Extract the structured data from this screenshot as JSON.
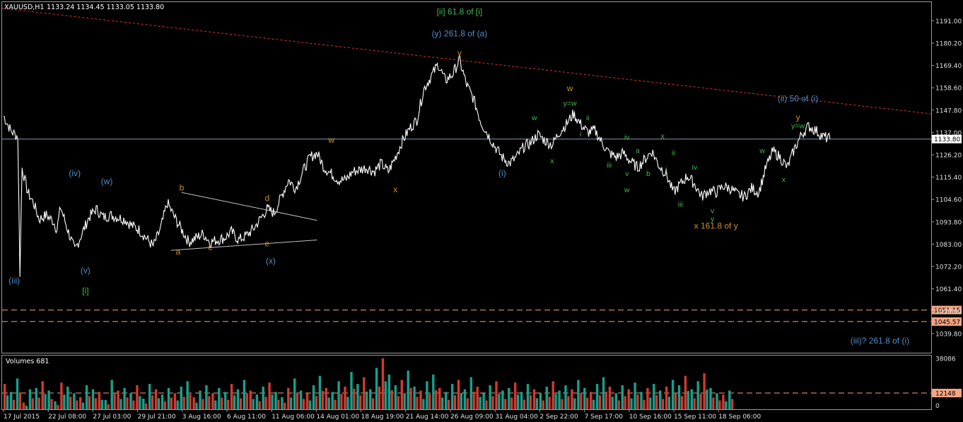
{
  "chart_data": {
    "type": "line",
    "symbol": "XAUUSD,H1",
    "ohlc": "1133.24 1134.45 1133.05 1133.80",
    "current_price": 1133.8,
    "current_price_label": "1133.80",
    "price_levels": [
      {
        "value": 1051.15,
        "label": "1051.15",
        "color": "#f4a582"
      },
      {
        "value": 1045.57,
        "label": "1045.57",
        "color": "#f4a582"
      }
    ],
    "ylim": [
      1030.5,
      1200.0
    ],
    "y_ticks": [
      "1191.00",
      "1180.20",
      "1169.40",
      "1158.60",
      "1147.80",
      "1137.00",
      "1126.20",
      "1115.40",
      "1104.60",
      "1093.80",
      "1083.00",
      "1072.20",
      "1061.40",
      "1050.60",
      "1039.80"
    ],
    "x_ticks": [
      "17 Jul 2015",
      "22 Jul 08:00",
      "27 Jul 03:00",
      "29 Jul 21:00",
      "3 Aug 16:00",
      "6 Aug 11:00",
      "11 Aug 06:00",
      "14 Aug 01:00",
      "18 Aug 19:00",
      "21 Aug 14:00",
      "26 Aug 09:00",
      "31 Aug 04:00",
      "2 Sep 22:00",
      "7 Sep 17:00",
      "10 Sep 16:00",
      "15 Sep 11:00",
      "18 Sep 06:00"
    ],
    "price_path": [
      [
        0,
        1145
      ],
      [
        1,
        1138
      ],
      [
        1.3,
        1137
      ],
      [
        2,
        1135
      ],
      [
        2.3,
        1069
      ],
      [
        2.6,
        1120
      ],
      [
        3.4,
        1108
      ],
      [
        4.2,
        1103
      ],
      [
        5,
        1095
      ],
      [
        6,
        1097
      ],
      [
        7,
        1094
      ],
      [
        7.5,
        1090
      ],
      [
        8,
        1101
      ],
      [
        9,
        1090
      ],
      [
        10,
        1080
      ],
      [
        11,
        1088
      ],
      [
        12,
        1096
      ],
      [
        13,
        1100
      ],
      [
        14,
        1096
      ],
      [
        15,
        1097
      ],
      [
        16,
        1096
      ],
      [
        17,
        1095
      ],
      [
        18,
        1092
      ],
      [
        19,
        1090
      ],
      [
        20,
        1086
      ],
      [
        21,
        1082
      ],
      [
        22,
        1090
      ],
      [
        23,
        1103
      ],
      [
        24,
        1096
      ],
      [
        25,
        1090
      ],
      [
        26,
        1084
      ],
      [
        27,
        1086
      ],
      [
        28,
        1088
      ],
      [
        29,
        1084
      ],
      [
        30,
        1085
      ],
      [
        31,
        1086
      ],
      [
        32,
        1089
      ],
      [
        33,
        1085
      ],
      [
        34,
        1087
      ],
      [
        35,
        1090
      ],
      [
        36,
        1095
      ],
      [
        37,
        1100
      ],
      [
        38,
        1098
      ],
      [
        39,
        1106
      ],
      [
        40,
        1114
      ],
      [
        41,
        1110
      ],
      [
        42,
        1118
      ],
      [
        43,
        1125
      ],
      [
        44,
        1127
      ],
      [
        45,
        1120
      ],
      [
        46,
        1117
      ],
      [
        47,
        1114
      ],
      [
        48,
        1114
      ],
      [
        49,
        1118
      ],
      [
        50,
        1119
      ],
      [
        51,
        1120
      ],
      [
        52,
        1118
      ],
      [
        53,
        1122
      ],
      [
        54,
        1118
      ],
      [
        55,
        1125
      ],
      [
        56,
        1133
      ],
      [
        57,
        1139
      ],
      [
        58,
        1143
      ],
      [
        59,
        1158
      ],
      [
        60,
        1164
      ],
      [
        61,
        1170
      ],
      [
        62,
        1162
      ],
      [
        63,
        1165
      ],
      [
        64,
        1172
      ],
      [
        65,
        1160
      ],
      [
        66,
        1153
      ],
      [
        67,
        1142
      ],
      [
        68,
        1136
      ],
      [
        69,
        1130
      ],
      [
        70,
        1125
      ],
      [
        71,
        1122
      ],
      [
        72,
        1125
      ],
      [
        73,
        1130
      ],
      [
        74,
        1132
      ],
      [
        75,
        1136
      ],
      [
        76,
        1133
      ],
      [
        77,
        1131
      ],
      [
        78,
        1137
      ],
      [
        79,
        1141
      ],
      [
        80,
        1146
      ],
      [
        81,
        1141
      ],
      [
        82,
        1137
      ],
      [
        83,
        1138
      ],
      [
        84,
        1132
      ],
      [
        85,
        1127
      ],
      [
        86,
        1125
      ],
      [
        87,
        1127
      ],
      [
        88,
        1123
      ],
      [
        89,
        1120
      ],
      [
        90,
        1124
      ],
      [
        91,
        1128
      ],
      [
        92,
        1121
      ],
      [
        93,
        1117
      ],
      [
        94,
        1108
      ],
      [
        95,
        1112
      ],
      [
        96,
        1116
      ],
      [
        97,
        1112
      ],
      [
        98,
        1106
      ],
      [
        99,
        1109
      ],
      [
        100,
        1108
      ],
      [
        101,
        1111
      ],
      [
        102,
        1110
      ],
      [
        103,
        1107
      ],
      [
        104,
        1106
      ],
      [
        105,
        1110
      ],
      [
        106,
        1108
      ],
      [
        107,
        1120
      ],
      [
        108,
        1128
      ],
      [
        109,
        1125
      ],
      [
        110,
        1120
      ],
      [
        111,
        1129
      ],
      [
        112,
        1136
      ],
      [
        113,
        1140
      ],
      [
        114,
        1138
      ],
      [
        115,
        1135
      ],
      [
        116,
        1133.8
      ]
    ],
    "volume_title": "Volumes 681",
    "volume_ticks": [
      "38086",
      "12148",
      "0"
    ],
    "volume_level": 12148,
    "volume_max": 38086,
    "volumes": [
      19000,
      13000,
      23000,
      5000,
      15000,
      16000,
      21000,
      14000,
      6000,
      20000,
      17000,
      12000,
      9000,
      18000,
      15000,
      13000,
      7000,
      22000,
      14000,
      16000,
      12000,
      18000,
      8000,
      19000,
      15000,
      11000,
      16000,
      12000,
      17000,
      21000,
      9000,
      14000,
      18000,
      12000,
      16000,
      13000,
      19000,
      15000,
      22000,
      14000,
      11000,
      17000,
      20000,
      13000,
      9000,
      16000,
      23000,
      14000,
      12000,
      18000,
      25000,
      16000,
      13000,
      21000,
      17000,
      28000,
      19000,
      24000,
      15000,
      31000,
      38086,
      26000,
      18000,
      22000,
      29000,
      17000,
      14000,
      21000,
      26000,
      16000,
      13000,
      19000,
      22000,
      15000,
      24000,
      17000,
      12000,
      18000,
      21000,
      14000,
      16000,
      20000,
      13000,
      19000,
      15000,
      12000,
      17000,
      21000,
      14000,
      18000,
      15000,
      22000,
      16000,
      13000,
      19000,
      24000,
      17000,
      12000,
      18000,
      15000,
      20000,
      13000,
      16000,
      19000,
      14000,
      17000,
      22000,
      18000,
      25000,
      15000,
      21000,
      27000,
      16000,
      12000,
      11000,
      14000
    ],
    "trendline_color": "#e03030",
    "annotations": [
      {
        "text": "[ii] 61.8 of [i]",
        "color": "#3fb950",
        "idx": 64,
        "price": 1194,
        "size": "l"
      },
      {
        "text": "(y) 261.8 of (a)",
        "color": "#4f8fc9",
        "idx": 64,
        "price": 1183.5,
        "size": "l"
      },
      {
        "text": "y",
        "color": "#c8902a",
        "idx": 64,
        "price": 1174,
        "size": "l"
      },
      {
        "text": "(ii) 50 of (i)",
        "color": "#4f8fc9",
        "idx": 111.5,
        "price": 1152,
        "size": "l"
      },
      {
        "text": "y",
        "color": "#c8902a",
        "idx": 111.5,
        "price": 1143,
        "size": "l"
      },
      {
        "text": "y=w",
        "color": "#3fb950",
        "idx": 111.5,
        "price": 1139,
        "size": "s"
      },
      {
        "text": "(iii)",
        "color": "#4f8fc9",
        "idx": 1.5,
        "price": 1064,
        "size": "l"
      },
      {
        "text": "(iv)",
        "color": "#4f8fc9",
        "idx": 10,
        "price": 1116,
        "size": "l"
      },
      {
        "text": "(w)",
        "color": "#4f8fc9",
        "idx": 14.5,
        "price": 1112,
        "size": "l"
      },
      {
        "text": "(v)",
        "color": "#4f8fc9",
        "idx": 11.5,
        "price": 1069,
        "size": "l"
      },
      {
        "text": "[i]",
        "color": "#3fb950",
        "idx": 11.5,
        "price": 1059,
        "size": "l"
      },
      {
        "text": "b",
        "color": "#c8902a",
        "idx": 25,
        "price": 1109,
        "size": "l"
      },
      {
        "text": "a",
        "color": "#c8902a",
        "idx": 24.5,
        "price": 1078,
        "size": "l"
      },
      {
        "text": "c",
        "color": "#c8902a",
        "idx": 29,
        "price": 1080,
        "size": "l"
      },
      {
        "text": "d",
        "color": "#c8902a",
        "idx": 37,
        "price": 1104,
        "size": "l"
      },
      {
        "text": "e",
        "color": "#c8902a",
        "idx": 37,
        "price": 1082,
        "size": "l"
      },
      {
        "text": "(x)",
        "color": "#4f8fc9",
        "idx": 37.5,
        "price": 1073.5,
        "size": "l"
      },
      {
        "text": "w",
        "color": "#c8902a",
        "idx": 46,
        "price": 1132,
        "size": "l"
      },
      {
        "text": "x",
        "color": "#c8902a",
        "idx": 55,
        "price": 1108,
        "size": "l"
      },
      {
        "text": "(i)",
        "color": "#4f8fc9",
        "idx": 70,
        "price": 1116,
        "size": "l"
      },
      {
        "text": "w",
        "color": "#3fb950",
        "idx": 74.5,
        "price": 1143,
        "size": "s"
      },
      {
        "text": "x",
        "color": "#3fb950",
        "idx": 77,
        "price": 1122,
        "size": "s"
      },
      {
        "text": "w",
        "color": "#c8902a",
        "idx": 79.5,
        "price": 1157,
        "size": "l"
      },
      {
        "text": "y=w",
        "color": "#3fb950",
        "idx": 79.5,
        "price": 1150,
        "size": "s"
      },
      {
        "text": "ii",
        "color": "#3fb950",
        "idx": 82,
        "price": 1143,
        "size": "s"
      },
      {
        "text": "i",
        "color": "#3fb950",
        "idx": 81,
        "price": 1135,
        "size": "s"
      },
      {
        "text": "iii",
        "color": "#3fb950",
        "idx": 85,
        "price": 1120,
        "size": "s"
      },
      {
        "text": "iv",
        "color": "#3fb950",
        "idx": 87.5,
        "price": 1133.5,
        "size": "s"
      },
      {
        "text": "a",
        "color": "#3fb950",
        "idx": 89,
        "price": 1127,
        "size": "s"
      },
      {
        "text": "v",
        "color": "#3fb950",
        "idx": 87.5,
        "price": 1116,
        "size": "s"
      },
      {
        "text": "b",
        "color": "#3fb950",
        "idx": 90.5,
        "price": 1116,
        "size": "s"
      },
      {
        "text": "w",
        "color": "#3fb950",
        "idx": 87.5,
        "price": 1108,
        "size": "s"
      },
      {
        "text": "x",
        "color": "#3fb950",
        "idx": 92.5,
        "price": 1134,
        "size": "s"
      },
      {
        "text": "ii",
        "color": "#3fb950",
        "idx": 94,
        "price": 1126,
        "size": "s"
      },
      {
        "text": "i",
        "color": "#3fb950",
        "idx": 93,
        "price": 1118,
        "size": "s"
      },
      {
        "text": "iii",
        "color": "#3fb950",
        "idx": 95,
        "price": 1101,
        "size": "s"
      },
      {
        "text": "iv",
        "color": "#3fb950",
        "idx": 97,
        "price": 1119,
        "size": "s"
      },
      {
        "text": "v",
        "color": "#3fb950",
        "idx": 99.5,
        "price": 1098,
        "size": "s"
      },
      {
        "text": "y",
        "color": "#3fb950",
        "idx": 99.5,
        "price": 1094,
        "size": "s"
      },
      {
        "text": "x 161.8 of y",
        "color": "#c8902a",
        "idx": 100,
        "price": 1090.5,
        "size": "l"
      },
      {
        "text": "w",
        "color": "#3fb950",
        "idx": 106.5,
        "price": 1127,
        "size": "s"
      },
      {
        "text": "x",
        "color": "#3fb950",
        "idx": 109.5,
        "price": 1113,
        "size": "s"
      },
      {
        "text": "(iii)? 261.8 of (i)",
        "color": "#4f8fc9",
        "idx": 123,
        "price": 1035,
        "size": "l"
      }
    ]
  }
}
